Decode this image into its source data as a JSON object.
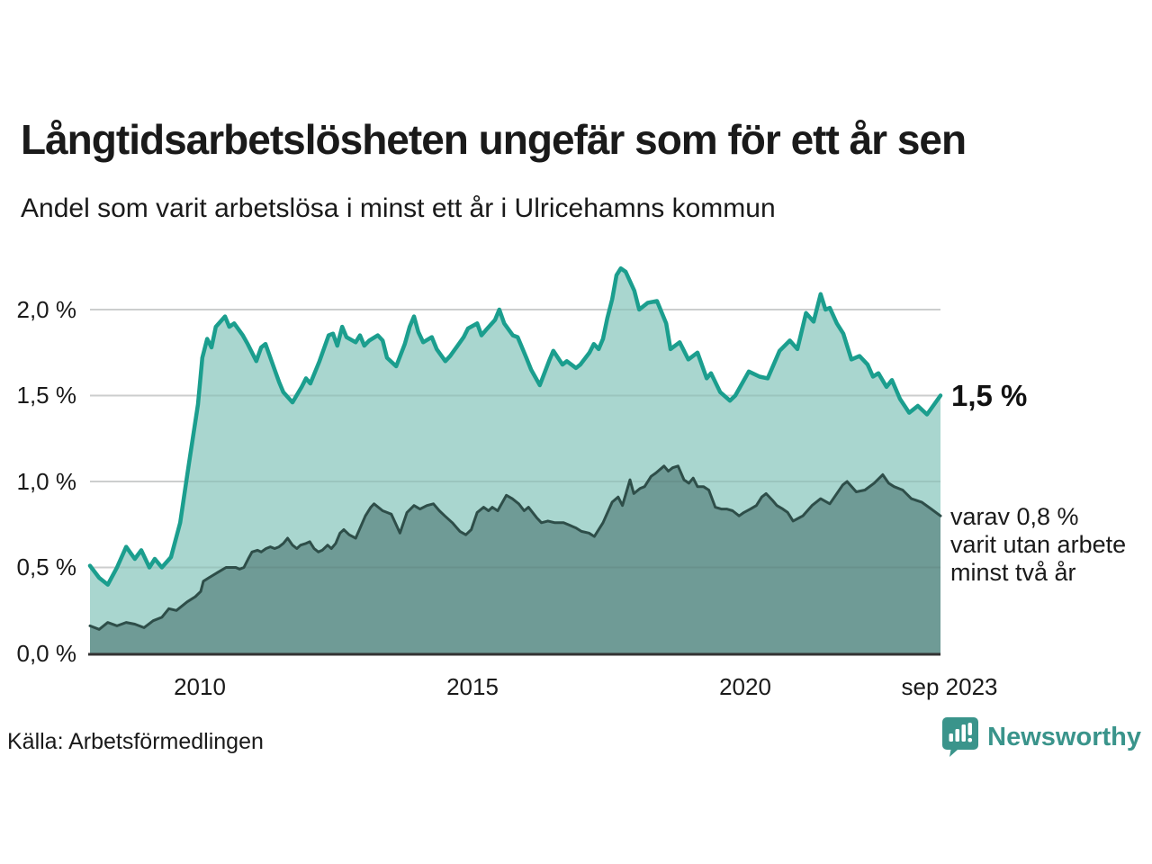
{
  "header": {
    "title": "Långtidsarbetslösheten ungefär som för ett år sen",
    "subtitle": "Andel som varit arbetslösa i minst ett år i Ulricehamns kommun"
  },
  "footer": {
    "source": "Källa: Arbetsförmedlingen",
    "brand": "Newsworthy"
  },
  "colors": {
    "accent_teal": "#1b9e8e",
    "light_area": "#a9d6cf",
    "dark_area": "#6f9b96",
    "dark_line": "#2e4e49",
    "gridline": "#e1e1e1",
    "axis": "#333333",
    "brand_teal": "#3a948b"
  },
  "chart_data": {
    "type": "area",
    "title": "Långtidsarbetslösheten ungefär som för ett år sen",
    "subtitle": "Andel som varit arbetslösa i minst ett år i Ulricehamns kommun",
    "unit": "%",
    "xlim": [
      2008,
      2023.75
    ],
    "ylim": [
      0,
      2.35
    ],
    "grid": "horizontal",
    "legend_position": "none",
    "x_axis": {
      "ticks": [
        "2010",
        "2015",
        "2020",
        "sep 2023"
      ],
      "tick_years": [
        2010,
        2015,
        2020,
        2023.75
      ]
    },
    "y_axis": {
      "ticks": [
        "2,0 %",
        "1,5 %",
        "1,0 %",
        "0,5 %",
        "0,0 %"
      ],
      "tick_values": [
        2.0,
        1.5,
        1.0,
        0.5,
        0.0
      ]
    },
    "end_labels": {
      "latest": "1,5 %",
      "secondary_lines": [
        "varav 0,8 %",
        "varit utan arbete",
        "minst två år"
      ]
    },
    "series": [
      {
        "name": "Arbetslösa minst ett år",
        "latest_value": 1.5,
        "line_color": "#1b9e8e",
        "fill_color": "#a9d6cf",
        "line_width": 4.5,
        "points": [
          [
            2008.0,
            0.51
          ],
          [
            2008.17,
            0.44
          ],
          [
            2008.33,
            0.4
          ],
          [
            2008.5,
            0.5
          ],
          [
            2008.67,
            0.62
          ],
          [
            2008.83,
            0.55
          ],
          [
            2008.95,
            0.6
          ],
          [
            2009.1,
            0.5
          ],
          [
            2009.2,
            0.55
          ],
          [
            2009.33,
            0.5
          ],
          [
            2009.5,
            0.56
          ],
          [
            2009.67,
            0.76
          ],
          [
            2009.83,
            1.1
          ],
          [
            2010.0,
            1.45
          ],
          [
            2010.08,
            1.72
          ],
          [
            2010.17,
            1.83
          ],
          [
            2010.25,
            1.78
          ],
          [
            2010.33,
            1.9
          ],
          [
            2010.5,
            1.96
          ],
          [
            2010.58,
            1.9
          ],
          [
            2010.67,
            1.92
          ],
          [
            2010.83,
            1.85
          ],
          [
            2010.92,
            1.8
          ],
          [
            2011.08,
            1.7
          ],
          [
            2011.17,
            1.78
          ],
          [
            2011.25,
            1.8
          ],
          [
            2011.42,
            1.65
          ],
          [
            2011.5,
            1.58
          ],
          [
            2011.58,
            1.52
          ],
          [
            2011.75,
            1.46
          ],
          [
            2011.92,
            1.55
          ],
          [
            2012.0,
            1.6
          ],
          [
            2012.08,
            1.57
          ],
          [
            2012.25,
            1.7
          ],
          [
            2012.42,
            1.85
          ],
          [
            2012.5,
            1.86
          ],
          [
            2012.58,
            1.79
          ],
          [
            2012.67,
            1.9
          ],
          [
            2012.75,
            1.84
          ],
          [
            2012.92,
            1.81
          ],
          [
            2013.0,
            1.85
          ],
          [
            2013.08,
            1.79
          ],
          [
            2013.17,
            1.82
          ],
          [
            2013.33,
            1.85
          ],
          [
            2013.42,
            1.82
          ],
          [
            2013.5,
            1.72
          ],
          [
            2013.67,
            1.67
          ],
          [
            2013.83,
            1.8
          ],
          [
            2013.92,
            1.9
          ],
          [
            2014.0,
            1.96
          ],
          [
            2014.08,
            1.87
          ],
          [
            2014.17,
            1.81
          ],
          [
            2014.33,
            1.84
          ],
          [
            2014.42,
            1.77
          ],
          [
            2014.58,
            1.7
          ],
          [
            2014.67,
            1.73
          ],
          [
            2014.83,
            1.8
          ],
          [
            2014.92,
            1.84
          ],
          [
            2015.0,
            1.89
          ],
          [
            2015.17,
            1.92
          ],
          [
            2015.25,
            1.85
          ],
          [
            2015.33,
            1.88
          ],
          [
            2015.5,
            1.94
          ],
          [
            2015.58,
            2.0
          ],
          [
            2015.67,
            1.92
          ],
          [
            2015.83,
            1.85
          ],
          [
            2015.92,
            1.84
          ],
          [
            2016.0,
            1.78
          ],
          [
            2016.08,
            1.72
          ],
          [
            2016.17,
            1.65
          ],
          [
            2016.33,
            1.56
          ],
          [
            2016.5,
            1.7
          ],
          [
            2016.58,
            1.76
          ],
          [
            2016.75,
            1.68
          ],
          [
            2016.83,
            1.7
          ],
          [
            2017.0,
            1.66
          ],
          [
            2017.08,
            1.68
          ],
          [
            2017.25,
            1.75
          ],
          [
            2017.33,
            1.8
          ],
          [
            2017.42,
            1.77
          ],
          [
            2017.5,
            1.83
          ],
          [
            2017.58,
            1.95
          ],
          [
            2017.67,
            2.06
          ],
          [
            2017.75,
            2.2
          ],
          [
            2017.83,
            2.24
          ],
          [
            2017.92,
            2.22
          ],
          [
            2018.08,
            2.11
          ],
          [
            2018.17,
            2.0
          ],
          [
            2018.33,
            2.04
          ],
          [
            2018.5,
            2.05
          ],
          [
            2018.67,
            1.92
          ],
          [
            2018.75,
            1.77
          ],
          [
            2018.92,
            1.81
          ],
          [
            2019.08,
            1.71
          ],
          [
            2019.25,
            1.75
          ],
          [
            2019.42,
            1.6
          ],
          [
            2019.5,
            1.63
          ],
          [
            2019.67,
            1.52
          ],
          [
            2019.85,
            1.47
          ],
          [
            2019.95,
            1.5
          ],
          [
            2020.2,
            1.64
          ],
          [
            2020.4,
            1.61
          ],
          [
            2020.55,
            1.6
          ],
          [
            2020.77,
            1.76
          ],
          [
            2020.96,
            1.82
          ],
          [
            2021.1,
            1.77
          ],
          [
            2021.26,
            1.98
          ],
          [
            2021.4,
            1.93
          ],
          [
            2021.53,
            2.09
          ],
          [
            2021.62,
            2.0
          ],
          [
            2021.7,
            2.01
          ],
          [
            2021.83,
            1.92
          ],
          [
            2021.95,
            1.86
          ],
          [
            2022.1,
            1.71
          ],
          [
            2022.25,
            1.73
          ],
          [
            2022.4,
            1.68
          ],
          [
            2022.5,
            1.61
          ],
          [
            2022.6,
            1.63
          ],
          [
            2022.75,
            1.55
          ],
          [
            2022.85,
            1.59
          ],
          [
            2023.0,
            1.48
          ],
          [
            2023.17,
            1.4
          ],
          [
            2023.33,
            1.44
          ],
          [
            2023.5,
            1.39
          ],
          [
            2023.75,
            1.5
          ]
        ]
      },
      {
        "name": "Varav utan arbete minst två år",
        "latest_value": 0.8,
        "line_color": "#2e4e49",
        "fill_color": "#6f9b96",
        "line_width": 3,
        "points": [
          [
            2008.0,
            0.16
          ],
          [
            2008.17,
            0.14
          ],
          [
            2008.33,
            0.18
          ],
          [
            2008.5,
            0.16
          ],
          [
            2008.67,
            0.18
          ],
          [
            2008.83,
            0.17
          ],
          [
            2009.0,
            0.15
          ],
          [
            2009.17,
            0.19
          ],
          [
            2009.33,
            0.21
          ],
          [
            2009.46,
            0.26
          ],
          [
            2009.6,
            0.25
          ],
          [
            2009.8,
            0.3
          ],
          [
            2009.95,
            0.33
          ],
          [
            2010.05,
            0.36
          ],
          [
            2010.1,
            0.42
          ],
          [
            2010.2,
            0.44
          ],
          [
            2010.36,
            0.47
          ],
          [
            2010.52,
            0.5
          ],
          [
            2010.7,
            0.5
          ],
          [
            2010.77,
            0.49
          ],
          [
            2010.85,
            0.5
          ],
          [
            2010.93,
            0.55
          ],
          [
            2011.0,
            0.59
          ],
          [
            2011.1,
            0.6
          ],
          [
            2011.17,
            0.59
          ],
          [
            2011.26,
            0.61
          ],
          [
            2011.34,
            0.62
          ],
          [
            2011.42,
            0.61
          ],
          [
            2011.5,
            0.62
          ],
          [
            2011.58,
            0.64
          ],
          [
            2011.66,
            0.67
          ],
          [
            2011.75,
            0.63
          ],
          [
            2011.83,
            0.61
          ],
          [
            2011.9,
            0.63
          ],
          [
            2012.0,
            0.64
          ],
          [
            2012.07,
            0.65
          ],
          [
            2012.15,
            0.61
          ],
          [
            2012.23,
            0.59
          ],
          [
            2012.3,
            0.6
          ],
          [
            2012.4,
            0.63
          ],
          [
            2012.47,
            0.61
          ],
          [
            2012.55,
            0.64
          ],
          [
            2012.63,
            0.7
          ],
          [
            2012.7,
            0.72
          ],
          [
            2012.8,
            0.69
          ],
          [
            2012.92,
            0.67
          ],
          [
            2013.1,
            0.8
          ],
          [
            2013.2,
            0.85
          ],
          [
            2013.26,
            0.87
          ],
          [
            2013.42,
            0.83
          ],
          [
            2013.5,
            0.82
          ],
          [
            2013.58,
            0.81
          ],
          [
            2013.74,
            0.7
          ],
          [
            2013.87,
            0.82
          ],
          [
            2014.0,
            0.86
          ],
          [
            2014.11,
            0.84
          ],
          [
            2014.24,
            0.86
          ],
          [
            2014.36,
            0.87
          ],
          [
            2014.47,
            0.83
          ],
          [
            2014.57,
            0.8
          ],
          [
            2014.71,
            0.76
          ],
          [
            2014.85,
            0.71
          ],
          [
            2014.96,
            0.69
          ],
          [
            2015.06,
            0.72
          ],
          [
            2015.17,
            0.82
          ],
          [
            2015.29,
            0.85
          ],
          [
            2015.38,
            0.83
          ],
          [
            2015.45,
            0.85
          ],
          [
            2015.55,
            0.83
          ],
          [
            2015.71,
            0.92
          ],
          [
            2015.82,
            0.9
          ],
          [
            2015.94,
            0.87
          ],
          [
            2016.04,
            0.83
          ],
          [
            2016.12,
            0.85
          ],
          [
            2016.27,
            0.79
          ],
          [
            2016.36,
            0.76
          ],
          [
            2016.48,
            0.77
          ],
          [
            2016.61,
            0.76
          ],
          [
            2016.77,
            0.76
          ],
          [
            2016.85,
            0.75
          ],
          [
            2017.0,
            0.73
          ],
          [
            2017.1,
            0.71
          ],
          [
            2017.24,
            0.7
          ],
          [
            2017.34,
            0.68
          ],
          [
            2017.5,
            0.76
          ],
          [
            2017.67,
            0.88
          ],
          [
            2017.78,
            0.91
          ],
          [
            2017.86,
            0.86
          ],
          [
            2018.0,
            1.01
          ],
          [
            2018.07,
            0.93
          ],
          [
            2018.19,
            0.96
          ],
          [
            2018.27,
            0.97
          ],
          [
            2018.39,
            1.03
          ],
          [
            2018.48,
            1.05
          ],
          [
            2018.63,
            1.09
          ],
          [
            2018.71,
            1.06
          ],
          [
            2018.79,
            1.08
          ],
          [
            2018.89,
            1.09
          ],
          [
            2019.0,
            1.01
          ],
          [
            2019.09,
            0.99
          ],
          [
            2019.17,
            1.02
          ],
          [
            2019.25,
            0.97
          ],
          [
            2019.36,
            0.97
          ],
          [
            2019.46,
            0.95
          ],
          [
            2019.58,
            0.85
          ],
          [
            2019.69,
            0.84
          ],
          [
            2019.79,
            0.84
          ],
          [
            2019.9,
            0.83
          ],
          [
            2020.02,
            0.8
          ],
          [
            2020.11,
            0.82
          ],
          [
            2020.23,
            0.84
          ],
          [
            2020.34,
            0.86
          ],
          [
            2020.44,
            0.91
          ],
          [
            2020.52,
            0.93
          ],
          [
            2020.64,
            0.89
          ],
          [
            2020.72,
            0.86
          ],
          [
            2020.83,
            0.84
          ],
          [
            2020.92,
            0.82
          ],
          [
            2021.02,
            0.77
          ],
          [
            2021.2,
            0.8
          ],
          [
            2021.37,
            0.86
          ],
          [
            2021.53,
            0.9
          ],
          [
            2021.7,
            0.87
          ],
          [
            2021.94,
            0.98
          ],
          [
            2022.02,
            1.0
          ],
          [
            2022.19,
            0.94
          ],
          [
            2022.35,
            0.95
          ],
          [
            2022.52,
            0.99
          ],
          [
            2022.68,
            1.04
          ],
          [
            2022.79,
            0.99
          ],
          [
            2022.89,
            0.97
          ],
          [
            2023.05,
            0.95
          ],
          [
            2023.21,
            0.9
          ],
          [
            2023.4,
            0.88
          ],
          [
            2023.58,
            0.84
          ],
          [
            2023.75,
            0.8
          ]
        ]
      }
    ]
  }
}
